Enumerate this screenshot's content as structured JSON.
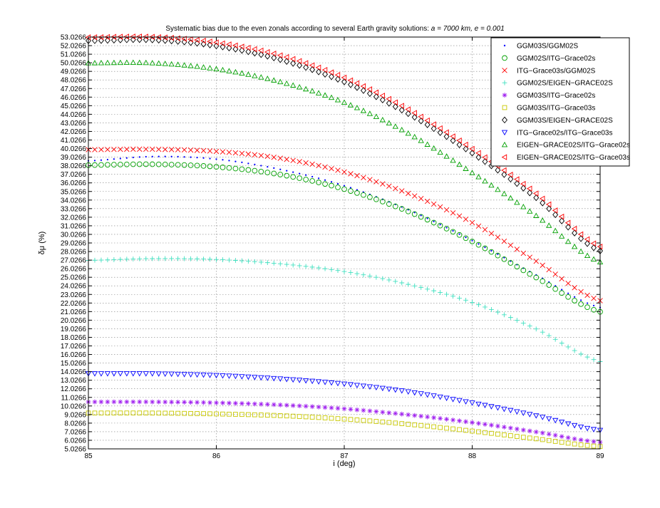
{
  "chart_data": {
    "type": "scatter",
    "title": "Systematic bias due to the even zonals according to several Earth gravity solutions: ",
    "title_params": "a = 7000  km,  e = 0.001",
    "xlabel": "i (deg)",
    "ylabel": "δμ (%)",
    "xlim": [
      85,
      89
    ],
    "ylim": [
      5.0266,
      53.0266
    ],
    "grid": true,
    "legend_position": "top-right",
    "x_ticks": [
      "85",
      "86",
      "87",
      "88",
      "89"
    ],
    "y_ticks": [
      "5.0266",
      "6.0266",
      "7.0266",
      "8.0266",
      "9.0266",
      "10.0266",
      "11.0266",
      "12.0266",
      "13.0266",
      "14.0266",
      "15.0266",
      "16.0266",
      "17.0266",
      "18.0266",
      "19.0266",
      "20.0266",
      "21.0266",
      "22.0266",
      "23.0266",
      "24.0266",
      "25.0266",
      "26.0266",
      "27.0266",
      "28.0266",
      "29.0266",
      "30.0266",
      "31.0266",
      "32.0266",
      "33.0266",
      "34.0266",
      "35.0266",
      "36.0266",
      "37.0266",
      "38.0266",
      "39.0266",
      "40.0266",
      "41.0266",
      "42.0266",
      "43.0266",
      "44.0266",
      "45.0266",
      "46.0266",
      "47.0266",
      "48.0266",
      "49.0266",
      "50.0266",
      "51.0266",
      "52.0266",
      "53.0266"
    ],
    "x": [
      85.0,
      85.5,
      86.0,
      86.5,
      87.0,
      87.5,
      88.0,
      88.5,
      89.0
    ],
    "series": [
      {
        "name": "GGM03S/GGM02S",
        "marker": "dot",
        "color": "#0000ff",
        "values": [
          38.6,
          39.1,
          38.8,
          37.6,
          35.7,
          32.9,
          29.3,
          25.3,
          21.5
        ]
      },
      {
        "name": "GGM02S/ITG−Grace02s",
        "marker": "circle",
        "color": "#00a000",
        "values": [
          38.1,
          38.2,
          37.9,
          37.0,
          35.3,
          32.7,
          29.2,
          25.0,
          21.0
        ]
      },
      {
        "name": "  ITG−Grace03s/GGM02S",
        "marker": "x",
        "color": "#ff0000",
        "values": [
          39.9,
          39.95,
          39.7,
          38.9,
          37.3,
          34.8,
          31.4,
          26.9,
          22.3
        ]
      },
      {
        "name": "  GGM02S/EIGEN−GRACE02S",
        "marker": "plus",
        "color": "#40e0c0",
        "values": [
          27.0,
          27.2,
          27.1,
          26.6,
          25.7,
          24.2,
          22.1,
          19.0,
          15.2
        ]
      },
      {
        "name": "GGM03S/ITG−Grace02s",
        "marker": "star",
        "color": "#a020f0",
        "values": [
          10.5,
          10.5,
          10.4,
          10.15,
          9.7,
          9.0,
          8.1,
          7.0,
          5.8
        ]
      },
      {
        "name": "GGM03S/ITG−Grace03s",
        "marker": "square",
        "color": "#c8c800",
        "values": [
          9.2,
          9.2,
          9.1,
          8.9,
          8.5,
          7.9,
          7.1,
          6.2,
          5.3
        ]
      },
      {
        "name": "GGM03S/EIGEN−GRACE02S",
        "marker": "diamond",
        "color": "#000000",
        "values": [
          52.6,
          52.7,
          52.0,
          50.4,
          47.8,
          44.1,
          39.5,
          34.3,
          28.1
        ]
      },
      {
        "name": "ITG−Grace02s/ITG−Grace03s",
        "marker": "triangle-down",
        "color": "#0000ff",
        "values": [
          13.8,
          13.8,
          13.6,
          13.2,
          12.6,
          11.7,
          10.4,
          8.9,
          7.2
        ]
      },
      {
        "name": "EIGEN−GRACE02S/ITG−Grace02s",
        "marker": "triangle-up",
        "color": "#00a000",
        "values": [
          50.0,
          50.0,
          49.3,
          47.8,
          45.4,
          41.8,
          37.2,
          32.2,
          26.8
        ]
      },
      {
        "name": "EIGEN−GRACE02S/ITG−Grace03s",
        "marker": "triangle-left",
        "color": "#ff0000",
        "values": [
          53.0,
          53.05,
          52.4,
          50.9,
          48.3,
          44.6,
          40.0,
          34.8,
          28.6
        ]
      }
    ]
  }
}
